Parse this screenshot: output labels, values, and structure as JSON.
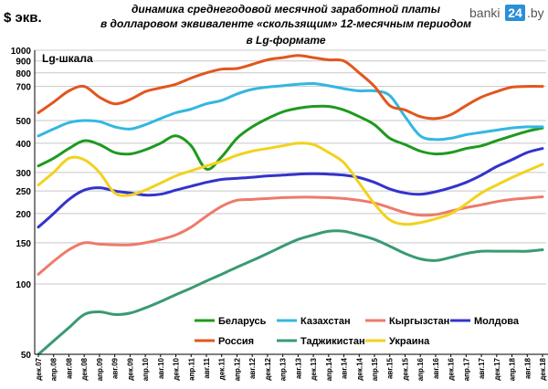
{
  "header": {
    "title_line1": "динамика среднегодовой месячной заработной платы",
    "title_line2": "в долларовом эквиваленте «скользящим» 12-месячным периодом",
    "title_line3": "в Lg-формате",
    "unit": "$ экв.",
    "scale_note": "Lg-шкала",
    "logo_text": "banki",
    "logo_num": "24",
    "logo_suffix": ".by"
  },
  "colors": {
    "belarus": "#1e9a1e",
    "kazakhstan": "#33b7e0",
    "kyrgyzstan": "#ee7a6a",
    "moldova": "#3333cc",
    "russia": "#e2561e",
    "tajikistan": "#3a9a72",
    "ukraine": "#f2d21e",
    "grid": "#c8c8c8",
    "axis": "#000000"
  },
  "chart_data": {
    "type": "line",
    "y_scale": "log",
    "ylim": [
      50,
      1000
    ],
    "yticks": [
      50,
      100,
      150,
      200,
      250,
      300,
      400,
      500,
      700,
      800,
      900,
      1000
    ],
    "grid": true,
    "legend_position": "bottom-center",
    "x": [
      "дек.07",
      "апр.08",
      "авг.08",
      "дек.08",
      "апр.09",
      "авг.09",
      "дек.09",
      "апр.10",
      "авг.10",
      "дек.10",
      "апр.11",
      "авг.11",
      "дек.11",
      "апр.12",
      "авг.12",
      "дек.12",
      "апр.13",
      "авг.13",
      "дек.13",
      "апр.14",
      "авг.14",
      "дек.14",
      "апр.15",
      "авг.15",
      "дек.15",
      "апр.16",
      "авг.16",
      "дек.16",
      "апр.17",
      "авг.17",
      "дек.17",
      "апр.18",
      "авг.18",
      "дек.18"
    ],
    "series": [
      {
        "key": "belarus",
        "name": "Беларусь",
        "values": [
          320,
          345,
          380,
          410,
          395,
          365,
          360,
          375,
          400,
          430,
          390,
          310,
          350,
          420,
          470,
          510,
          545,
          565,
          575,
          575,
          555,
          520,
          480,
          420,
          395,
          370,
          360,
          365,
          380,
          390,
          410,
          430,
          450,
          465
        ]
      },
      {
        "key": "kazakhstan",
        "name": "Казахстан",
        "values": [
          430,
          460,
          490,
          500,
          495,
          470,
          460,
          480,
          510,
          540,
          560,
          590,
          610,
          650,
          680,
          695,
          705,
          715,
          720,
          705,
          685,
          670,
          670,
          640,
          520,
          430,
          415,
          420,
          435,
          445,
          455,
          465,
          470,
          470
        ]
      },
      {
        "key": "kyrgyzstan",
        "name": "Кыргызстан",
        "values": [
          110,
          125,
          140,
          150,
          148,
          147,
          147,
          150,
          155,
          162,
          175,
          195,
          215,
          228,
          230,
          232,
          234,
          235,
          235,
          234,
          232,
          228,
          222,
          212,
          202,
          197,
          198,
          205,
          212,
          218,
          225,
          230,
          233,
          236
        ]
      },
      {
        "key": "moldova",
        "name": "Молдова",
        "values": [
          175,
          200,
          230,
          252,
          258,
          250,
          245,
          240,
          242,
          252,
          262,
          272,
          280,
          283,
          286,
          290,
          292,
          295,
          296,
          295,
          292,
          285,
          272,
          255,
          245,
          242,
          248,
          258,
          272,
          292,
          318,
          340,
          365,
          380
        ]
      },
      {
        "key": "russia",
        "name": "Россия",
        "values": [
          540,
          600,
          670,
          700,
          630,
          590,
          615,
          665,
          690,
          715,
          760,
          800,
          830,
          835,
          870,
          910,
          930,
          950,
          930,
          910,
          900,
          800,
          700,
          580,
          555,
          520,
          510,
          530,
          580,
          630,
          665,
          695,
          700,
          700
        ]
      },
      {
        "key": "tajikistan",
        "name": "Таджикистан",
        "values": [
          50,
          57,
          65,
          74,
          76,
          74,
          75,
          79,
          84,
          90,
          96,
          103,
          110,
          118,
          126,
          135,
          145,
          155,
          162,
          168,
          168,
          162,
          155,
          145,
          135,
          128,
          126,
          130,
          135,
          138,
          138,
          138,
          138,
          140
        ]
      },
      {
        "key": "ukraine",
        "name": "Украина",
        "values": [
          265,
          300,
          345,
          340,
          300,
          245,
          240,
          252,
          270,
          290,
          305,
          320,
          335,
          355,
          370,
          380,
          390,
          400,
          395,
          365,
          330,
          270,
          220,
          188,
          180,
          183,
          190,
          200,
          220,
          245,
          265,
          285,
          305,
          325
        ]
      }
    ]
  }
}
